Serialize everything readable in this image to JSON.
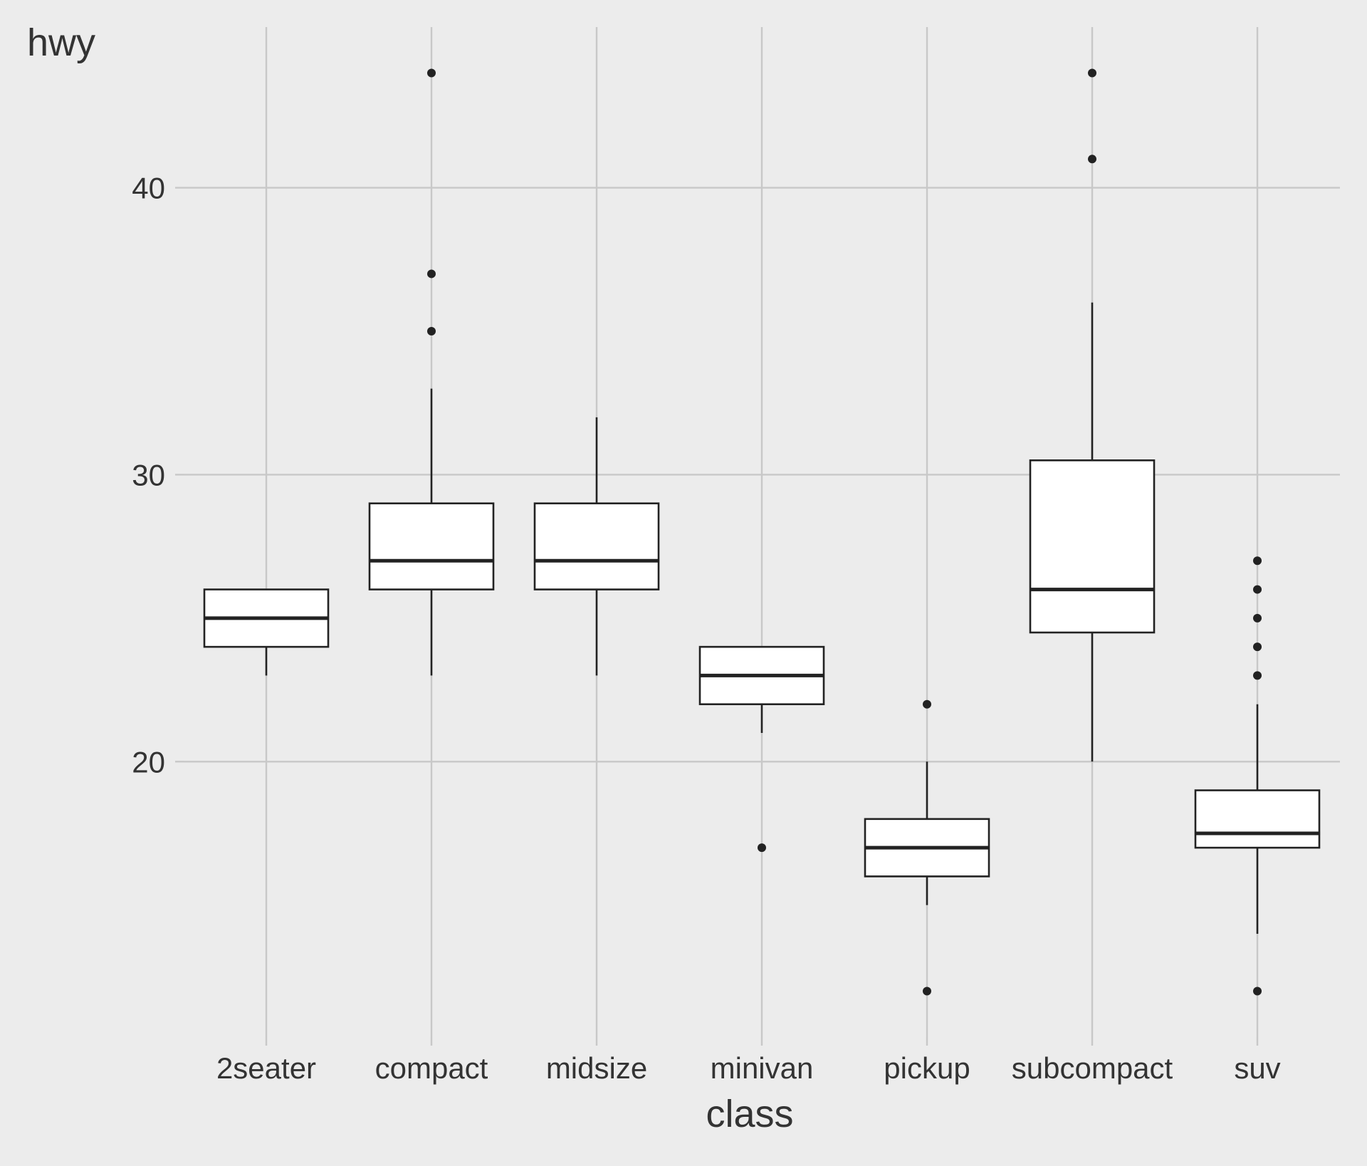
{
  "chart_data": {
    "type": "boxplot",
    "xlabel": "class",
    "ylabel": "hwy",
    "ylim": [
      10.4,
      45.6
    ],
    "yticks": [
      20,
      30,
      40
    ],
    "grid": true,
    "legend": "none",
    "categories": [
      "2seater",
      "compact",
      "midsize",
      "minivan",
      "pickup",
      "subcompact",
      "suv"
    ],
    "boxes": [
      {
        "category": "2seater",
        "whisker_low": 23,
        "q1": 24,
        "median": 25,
        "q3": 26,
        "whisker_high": 26,
        "outliers": []
      },
      {
        "category": "compact",
        "whisker_low": 23,
        "q1": 26,
        "median": 27,
        "q3": 29,
        "whisker_high": 33,
        "outliers": [
          35,
          37,
          44
        ]
      },
      {
        "category": "midsize",
        "whisker_low": 23,
        "q1": 26,
        "median": 27,
        "q3": 29,
        "whisker_high": 32,
        "outliers": []
      },
      {
        "category": "minivan",
        "whisker_low": 21,
        "q1": 22,
        "median": 23,
        "q3": 24,
        "whisker_high": 24,
        "outliers": [
          17
        ]
      },
      {
        "category": "pickup",
        "whisker_low": 15,
        "q1": 16,
        "median": 17,
        "q3": 18,
        "whisker_high": 20,
        "outliers": [
          12,
          22
        ]
      },
      {
        "category": "subcompact",
        "whisker_low": 20,
        "q1": 24.5,
        "median": 26,
        "q3": 30.5,
        "whisker_high": 36,
        "outliers": [
          41,
          44
        ]
      },
      {
        "category": "suv",
        "whisker_low": 14,
        "q1": 17,
        "median": 17.5,
        "q3": 19,
        "whisker_high": 22,
        "outliers": [
          12,
          23,
          24,
          25,
          26,
          27
        ]
      }
    ],
    "colors": {
      "background": "#ececec",
      "grid": "#c8c8c8",
      "box_fill": "#ffffff",
      "stroke": "#222222",
      "text": "#333333"
    }
  }
}
